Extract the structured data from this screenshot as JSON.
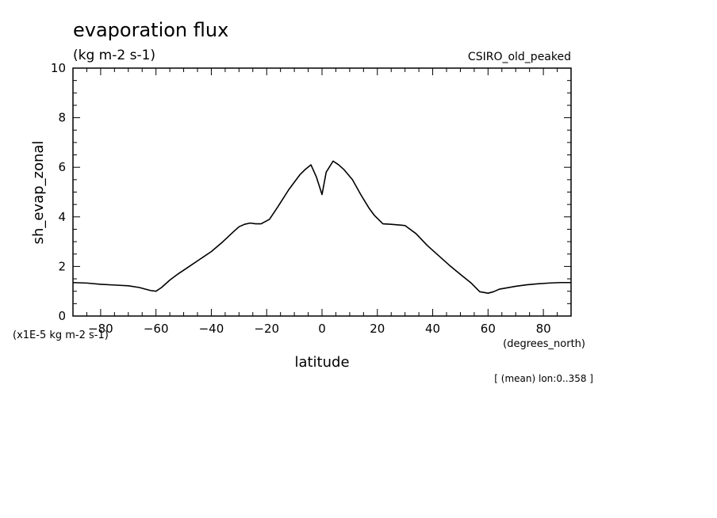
{
  "chart_data": {
    "type": "line",
    "title": "evaporation flux",
    "subtitle": "(kg m-2 s-1)",
    "dataset_label": "CSIRO_old_peaked",
    "xlabel": "latitude",
    "ylabel": "sh_evap_zonal",
    "x_units": "(degrees_north)",
    "y_scale_note": "(x1E-5 kg m-2 s-1)",
    "footnote": "[ (mean) lon:0..358 ]",
    "xlim": [
      -90,
      90
    ],
    "ylim": [
      0,
      10
    ],
    "x_ticks": [
      -80,
      -60,
      -40,
      -20,
      0,
      20,
      40,
      60,
      80
    ],
    "y_ticks": [
      0,
      2,
      4,
      6,
      8,
      10
    ],
    "grid": false,
    "line_color": "#000000",
    "series": [
      {
        "x": [
          -90,
          -85,
          -80,
          -75,
          -70,
          -66,
          -62,
          -60,
          -58,
          -55,
          -52,
          -48,
          -44,
          -40,
          -36,
          -32,
          -30,
          -28,
          -26,
          -24,
          -22,
          -19,
          -16,
          -12,
          -8,
          -6,
          -4,
          -2,
          0,
          1.5,
          4,
          6,
          8,
          11,
          14,
          17,
          19,
          22,
          25,
          30,
          34,
          38,
          42,
          46,
          50,
          54,
          57,
          60,
          62,
          64,
          66,
          70,
          74,
          78,
          82,
          86,
          90
        ],
        "y": [
          1.35,
          1.33,
          1.28,
          1.25,
          1.22,
          1.15,
          1.03,
          1.0,
          1.15,
          1.45,
          1.7,
          2.0,
          2.3,
          2.6,
          2.98,
          3.4,
          3.6,
          3.7,
          3.75,
          3.72,
          3.72,
          3.9,
          4.4,
          5.1,
          5.7,
          5.92,
          6.1,
          5.6,
          4.9,
          5.8,
          6.25,
          6.1,
          5.9,
          5.5,
          4.9,
          4.35,
          4.05,
          3.72,
          3.7,
          3.65,
          3.32,
          2.85,
          2.45,
          2.05,
          1.68,
          1.32,
          0.98,
          0.92,
          0.98,
          1.08,
          1.12,
          1.2,
          1.26,
          1.3,
          1.33,
          1.35,
          1.35
        ]
      }
    ]
  }
}
